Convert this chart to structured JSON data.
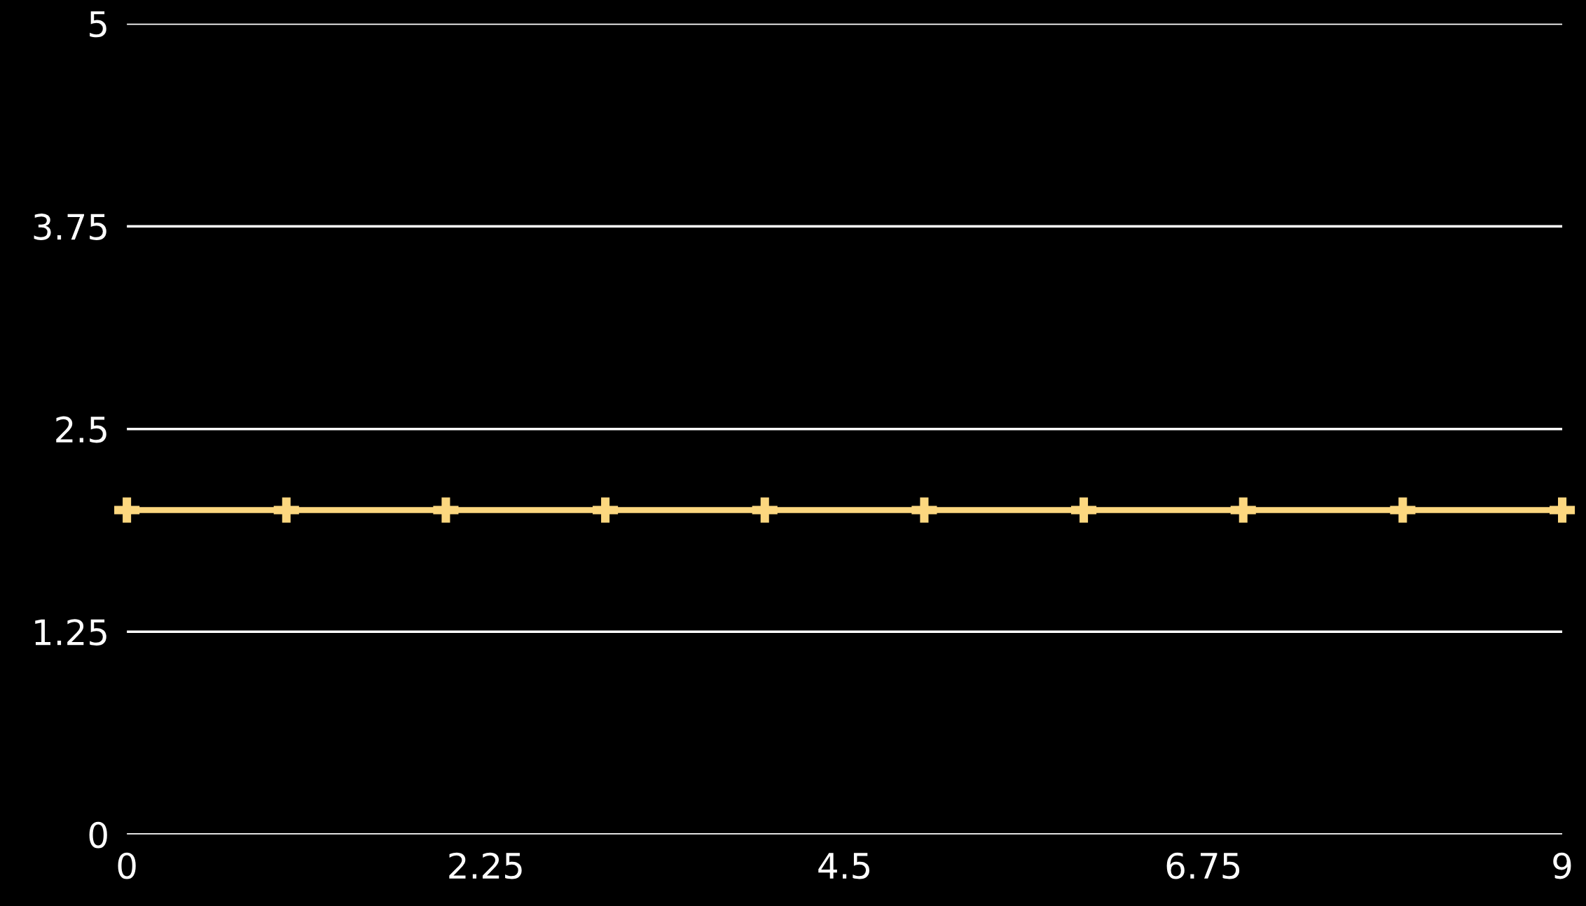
{
  "chart_data": {
    "type": "line",
    "x": [
      0,
      1,
      2,
      3,
      4,
      5,
      6,
      7,
      8,
      9
    ],
    "series": [
      {
        "color": "#fcd77f",
        "values": [
          2,
          2,
          2,
          2,
          2,
          2,
          2,
          2,
          2,
          2
        ]
      }
    ],
    "xlim": [
      0,
      9
    ],
    "xticks": [
      0,
      2.25,
      4.5,
      6.75,
      9
    ],
    "ylim": [
      0,
      5
    ],
    "yticks": [
      0,
      1.25,
      2.5,
      3.75,
      5
    ],
    "grid": "y",
    "marker": "cross",
    "line_style": "solid"
  }
}
